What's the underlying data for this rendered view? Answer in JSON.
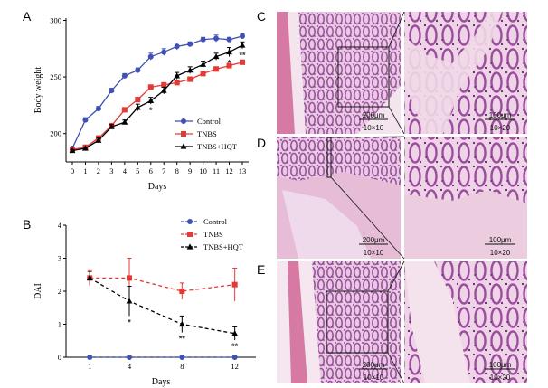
{
  "panels": {
    "A": "A",
    "B": "B",
    "C": "C",
    "D": "D",
    "E": "E"
  },
  "colors": {
    "Control": "#3f51b5",
    "TNBS": "#e53935",
    "TNBS+HQT": "#000000",
    "tissue_stain": "#b77ab8",
    "background_slide": "#f3e6ee"
  },
  "chart_data": [
    {
      "type": "line",
      "panel": "A",
      "xlabel": "Days",
      "ylabel": "Body weight",
      "x": [
        0,
        1,
        2,
        3,
        4,
        5,
        6,
        7,
        8,
        9,
        10,
        11,
        12,
        13
      ],
      "xticks": [
        "0",
        "1",
        "2",
        "3",
        "4",
        "5",
        "6",
        "7",
        "8",
        "9",
        "10",
        "11",
        "12",
        "13"
      ],
      "yticks": [
        "200",
        "250",
        "300"
      ],
      "ylim": [
        175,
        302
      ],
      "legend": "center-right",
      "grid": false,
      "series": [
        {
          "name": "Control",
          "marker": "circle",
          "dashed": false,
          "values": [
            187,
            212,
            222,
            238,
            251,
            256,
            268,
            272,
            277,
            279,
            283,
            284,
            283,
            286
          ],
          "errors": [
            1,
            2,
            2,
            2,
            2,
            2,
            3,
            3,
            3,
            2,
            2,
            3,
            2,
            2
          ]
        },
        {
          "name": "TNBS",
          "marker": "square",
          "dashed": false,
          "values": [
            186,
            188,
            196,
            207,
            221,
            230,
            241,
            243,
            245,
            248,
            253,
            257,
            260,
            263
          ],
          "errors": [
            1,
            1,
            2,
            2,
            2,
            2,
            2,
            2,
            2,
            2,
            2,
            2,
            2,
            2
          ]
        },
        {
          "name": "TNBS+HQT",
          "marker": "triangle",
          "dashed": false,
          "values": [
            185,
            187,
            194,
            206,
            210,
            223,
            229,
            238,
            251,
            256,
            261,
            268,
            272,
            278
          ],
          "errors": [
            1,
            1,
            2,
            2,
            2,
            3,
            3,
            3,
            3,
            3,
            3,
            3,
            4,
            3
          ]
        }
      ],
      "annotations": [
        {
          "x": 6,
          "text": "*"
        },
        {
          "x": 12,
          "text": "*"
        },
        {
          "x": 13,
          "text": "**"
        }
      ]
    },
    {
      "type": "line",
      "panel": "B",
      "xlabel": "Days",
      "ylabel": "DAI",
      "x": [
        1,
        4,
        8,
        12
      ],
      "xticks": [
        "1",
        "4",
        "8",
        "12"
      ],
      "yticks": [
        "0",
        "1",
        "2",
        "3",
        "4"
      ],
      "ylim": [
        0,
        4
      ],
      "legend": "top-right",
      "grid": false,
      "series": [
        {
          "name": "Control",
          "marker": "circle",
          "dashed": true,
          "values": [
            0,
            0,
            0,
            0
          ],
          "errors": [
            0,
            0,
            0,
            0
          ]
        },
        {
          "name": "TNBS",
          "marker": "square",
          "dashed": true,
          "values": [
            2.4,
            2.4,
            2.0,
            2.2
          ],
          "errors": [
            0.25,
            0.6,
            0.25,
            0.5
          ]
        },
        {
          "name": "TNBS+HQT",
          "marker": "triangle",
          "dashed": true,
          "values": [
            2.4,
            1.7,
            1.0,
            0.72
          ],
          "errors": [
            0.2,
            0.45,
            0.25,
            0.2
          ]
        }
      ],
      "annotations": [
        {
          "x": 4,
          "text": "*"
        },
        {
          "x": 8,
          "text": "**"
        },
        {
          "x": 12,
          "text": "**"
        }
      ]
    }
  ],
  "histology": [
    {
      "panel": "C",
      "left_scale": "200μm",
      "left_mag": "10×10",
      "right_scale": "100μm",
      "right_mag": "10×20"
    },
    {
      "panel": "D",
      "left_scale": "200μm",
      "left_mag": "10×10",
      "right_scale": "100μm",
      "right_mag": "10×20"
    },
    {
      "panel": "E",
      "left_scale": "200μm",
      "left_mag": "10×10",
      "right_scale": "100μm",
      "right_mag": "10×20"
    }
  ]
}
